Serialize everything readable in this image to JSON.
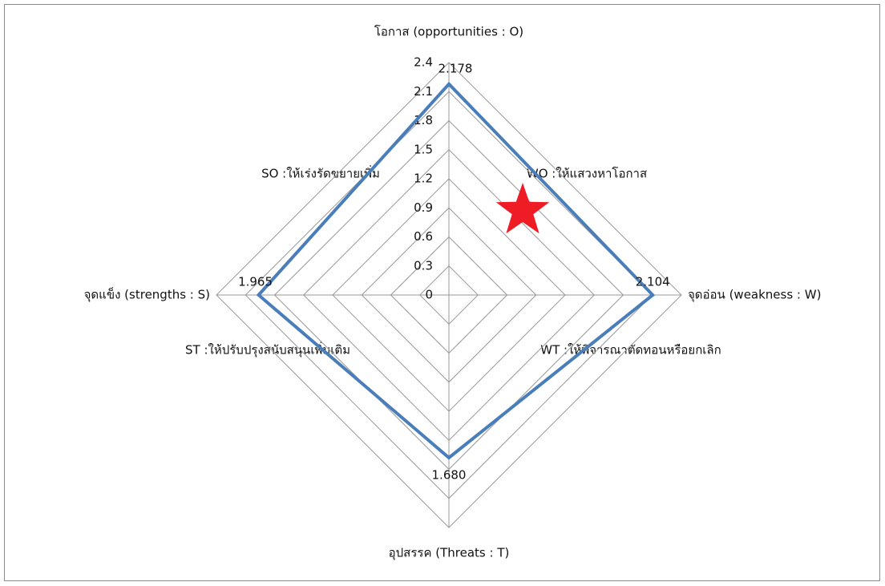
{
  "chart_data": {
    "type": "radar",
    "categories": [
      "โอกาส (opportunities : O)",
      "จุดอ่อน (weakness : W)",
      "อุปสรรค (Threats : T)",
      "จุดแข็ง (strengths : S)"
    ],
    "series": [
      {
        "color": "#4a7ebb",
        "values": [
          2.178,
          2.104,
          1.68,
          1.965
        ],
        "value_labels": [
          "2.178",
          "2.104",
          "1.680",
          "1.965"
        ]
      }
    ],
    "ylim": [
      0,
      2.4
    ],
    "yticks": [
      0,
      0.3,
      0.6,
      0.9,
      1.2,
      1.5,
      1.8,
      2.1,
      2.4
    ],
    "grid": true,
    "annotations": [
      "SO :ให้เร่งรัดขยายเพิ่ม",
      "WO :ให้แสวงหาโอกาส",
      "ST :ให้ปรับปรุงสนับสนุนเพิ่มเติม",
      "WT :ให้พิจารณาตัดทอนหรือยกเลิก"
    ]
  }
}
